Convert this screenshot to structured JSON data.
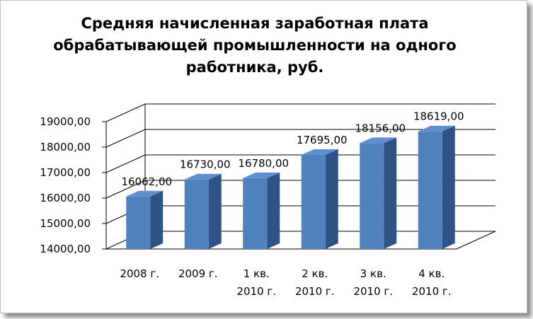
{
  "chart_data": {
    "type": "bar",
    "title_lines": [
      "Средняя начисленная заработная плата",
      "обрабатывающей промышленности на одного",
      "работника, руб."
    ],
    "categories": [
      [
        "2008 г."
      ],
      [
        "2009 г."
      ],
      [
        "1 кв.",
        "2010 г."
      ],
      [
        "2 кв.",
        "2010 г."
      ],
      [
        "3 кв.",
        "2010 г."
      ],
      [
        "4 кв.",
        "2010 г."
      ]
    ],
    "values": [
      16062,
      16730,
      16780,
      17695,
      18156,
      18619
    ],
    "value_labels": [
      "16062,00",
      "16730,00",
      "16780,00",
      "17695,00",
      "18156,00",
      "18619,00"
    ],
    "y_ticks": [
      "14000,00",
      "15000,00",
      "16000,00",
      "17000,00",
      "18000,00",
      "19000,00"
    ],
    "ylim": [
      14000,
      19000
    ],
    "grid": true,
    "legend": "none",
    "style": "3d-column",
    "colors": {
      "bar_front": "#4f81bd",
      "bar_side": "#2f5384",
      "bar_top": "#5f8fcd",
      "grid": "#000000"
    }
  }
}
